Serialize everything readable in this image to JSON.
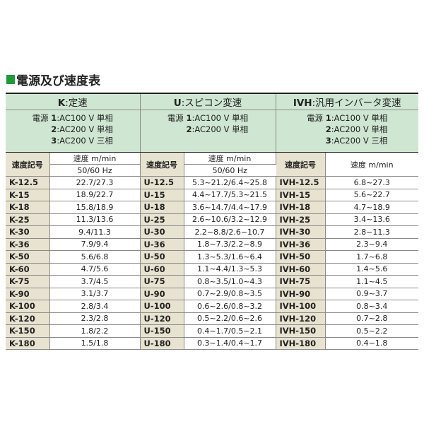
{
  "title": "電源及び速度表",
  "colors": {
    "accent": "#1f9a3a",
    "header_bg": "#cfe6d3",
    "code_bg": "#e8e2d0"
  },
  "series": [
    {
      "code": "K",
      "name": "定速",
      "power": [
        {
          "num": "1",
          "prefix": "電源 ",
          "text": ":AC100 V 単相"
        },
        {
          "num": "2",
          "text": ":AC200 V 単相"
        },
        {
          "num": "3",
          "text": ":AC200 V 三相"
        }
      ],
      "code_header": "速度記号",
      "speed_header": "速度 m/min",
      "freq": "50/60 Hz"
    },
    {
      "code": "U",
      "name": "スピコン変速",
      "power": [
        {
          "num": "1",
          "prefix": "電源 ",
          "text": ":AC100 V 単相"
        },
        {
          "num": "2",
          "text": ":AC200 V 単相"
        }
      ],
      "code_header": "速度記号",
      "speed_header": "速度 m/min",
      "freq": "50/60 Hz"
    },
    {
      "code": "IVH",
      "name": "汎用インバータ変速",
      "power": [
        {
          "num": "1",
          "prefix": "電源 ",
          "text": ":AC100 V 単相"
        },
        {
          "num": "2",
          "text": ":AC200 V 単相"
        },
        {
          "num": "3",
          "text": ":AC200 V 三相"
        }
      ],
      "code_header": "速度記号",
      "speed_header": "速度 m/min",
      "freq": ""
    }
  ],
  "rows": [
    {
      "k": "K-12.5",
      "ks": "22.7/27.3",
      "u": "U-12.5",
      "us": "5.3~21.2/6.4~25.8",
      "i": "IVH-12.5",
      "is": "6.8~27.3"
    },
    {
      "k": "K-15",
      "ks": "18.9/22.7",
      "u": "U-15",
      "us": "4.4~17.7/5.3~21.5",
      "i": "IVH-15",
      "is": "5.6~22.7"
    },
    {
      "k": "K-18",
      "ks": "15.8/18.9",
      "u": "U-18",
      "us": "3.6~14.7/4.4~17.9",
      "i": "IVH-18",
      "is": "4.7~18.9"
    },
    {
      "k": "K-25",
      "ks": "11.3/13.6",
      "u": "U-25",
      "us": "2.6~10.6/3.2~12.9",
      "i": "IVH-25",
      "is": "3.4~13.6"
    },
    {
      "k": "K-30",
      "ks": "9.4/11.3",
      "u": "U-30",
      "us": "2.2~8.8/2.6~10.7",
      "i": "IVH-30",
      "is": "2.8~11.3"
    },
    {
      "k": "K-36",
      "ks": "7.9/9.4",
      "u": "U-36",
      "us": "1.8~7.3/2.2~8.9",
      "i": "IVH-36",
      "is": "2.3~9.4"
    },
    {
      "k": "K-50",
      "ks": "5.6/6.8",
      "u": "U-50",
      "us": "1.3~5.3/1.6~6.4",
      "i": "IVH-50",
      "is": "1.7~6.8"
    },
    {
      "k": "K-60",
      "ks": "4.7/5.6",
      "u": "U-60",
      "us": "1.1~4.4/1.3~5.3",
      "i": "IVH-60",
      "is": "1.4~5.6"
    },
    {
      "k": "K-75",
      "ks": "3.7/4.5",
      "u": "U-75",
      "us": "0.8~3.5/1.0~4.3",
      "i": "IVH-75",
      "is": "1.1~4.5"
    },
    {
      "k": "K-90",
      "ks": "3.1/3.7",
      "u": "U-90",
      "us": "0.7~2.9/0.8~3.5",
      "i": "IVH-90",
      "is": "0.9~3.7"
    },
    {
      "k": "K-100",
      "ks": "2.8/3.4",
      "u": "U-100",
      "us": "0.6~2.6/0.8~3.2",
      "i": "IVH-100",
      "is": "0.8~3.4"
    },
    {
      "k": "K-120",
      "ks": "2.3/2.8",
      "u": "U-120",
      "us": "0.5~2.2/0.6~2.6",
      "i": "IVH-120",
      "is": "0.7~2.8"
    },
    {
      "k": "K-150",
      "ks": "1.8/2.2",
      "u": "U-150",
      "us": "0.4~1.7/0.5~2.1",
      "i": "IVH-150",
      "is": "0.5~2.2"
    },
    {
      "k": "K-180",
      "ks": "1.5/1.8",
      "u": "U-180",
      "us": "0.3~1.4/0.4~1.7",
      "i": "IVH-180",
      "is": "0.4~1.8"
    }
  ]
}
